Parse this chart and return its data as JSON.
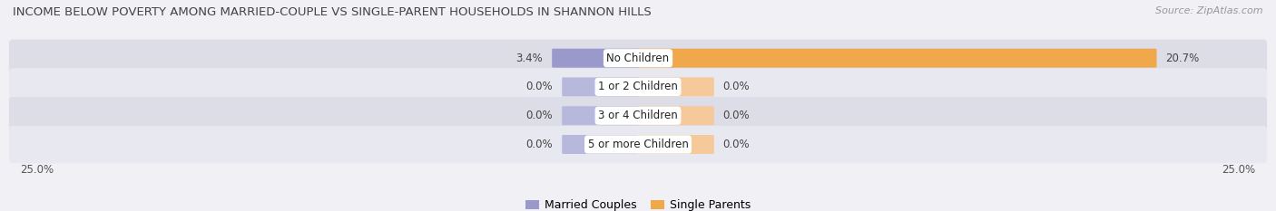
{
  "title": "INCOME BELOW POVERTY AMONG MARRIED-COUPLE VS SINGLE-PARENT HOUSEHOLDS IN SHANNON HILLS",
  "source": "Source: ZipAtlas.com",
  "categories": [
    "No Children",
    "1 or 2 Children",
    "3 or 4 Children",
    "5 or more Children"
  ],
  "married_values": [
    3.4,
    0.0,
    0.0,
    0.0
  ],
  "single_values": [
    20.7,
    0.0,
    0.0,
    0.0
  ],
  "married_color": "#9999cc",
  "married_color_light": "#b8b8dd",
  "single_color": "#f0a84a",
  "single_color_light": "#f5c99a",
  "row_bg_color_dark": "#dddde8",
  "row_bg_color_light": "#e8e8f0",
  "axis_max": 25.0,
  "stub_size": 3.0,
  "title_fontsize": 9.5,
  "label_fontsize": 8.5,
  "category_fontsize": 8.5,
  "legend_fontsize": 9,
  "source_fontsize": 8,
  "background_color": "#f0f0f5"
}
